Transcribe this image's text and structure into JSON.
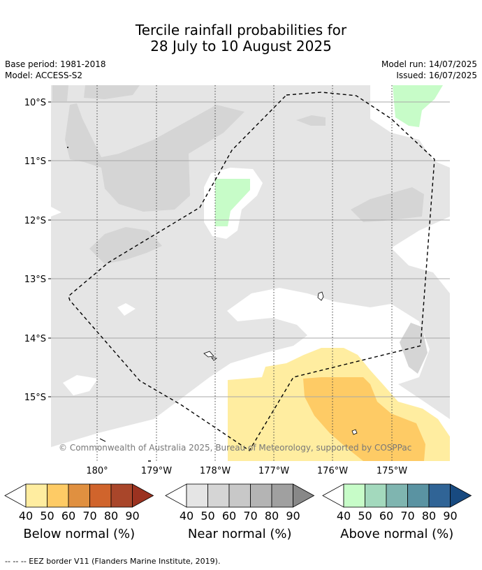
{
  "title_line1": "Tercile rainfall probabilities for",
  "title_line2": "28 July to 10 August 2025",
  "base_period": "Base period: 1981-2018",
  "model": "Model: ACCESS-S2",
  "model_run": "Model run: 14/07/2025",
  "issued": "Issued: 16/07/2025",
  "copyright": "© Commonwealth of Australia 2025, Bureau of Meteorology, supported by COSPPac",
  "footer_note": "-- -- -- EEZ border V11 (Flanders Marine Institute, 2019).",
  "colors": {
    "land_bg": "#e5e5e5",
    "near_50": "#d5d5d5",
    "below_40": "#ffeda0",
    "below_50": "#fecb65",
    "above_40": "#c7fcc8"
  },
  "chart_data": {
    "type": "heatmap",
    "x_ticks": [
      "180°",
      "179°W",
      "178°W",
      "177°W",
      "176°W",
      "175°W"
    ],
    "y_ticks": [
      "10°S",
      "11°S",
      "12°S",
      "13°S",
      "14°S",
      "15°S"
    ],
    "x_range": [
      179.2,
      -174.0
    ],
    "y_range": [
      -9.7,
      -16.1
    ],
    "grid": true,
    "colorbars": [
      {
        "label": "Below normal (%)",
        "ticks": [
          "40",
          "50",
          "60",
          "70",
          "80",
          "90"
        ],
        "colors": [
          "#ffeda0",
          "#fecb65",
          "#e09040",
          "#d0642c",
          "#a9462a",
          "#9b3220"
        ]
      },
      {
        "label": "Near normal (%)",
        "ticks": [
          "40",
          "50",
          "60",
          "70",
          "80",
          "90"
        ],
        "colors": [
          "#e5e5e5",
          "#d5d5d5",
          "#c8c8c8",
          "#b4b4b4",
          "#a0a0a0",
          "#888888"
        ]
      },
      {
        "label": "Above normal (%)",
        "ticks": [
          "40",
          "50",
          "60",
          "70",
          "80",
          "90"
        ],
        "colors": [
          "#c7fcc8",
          "#a3d9bd",
          "#7fb5b0",
          "#5a93a2",
          "#306496",
          "#184a80"
        ]
      }
    ]
  }
}
